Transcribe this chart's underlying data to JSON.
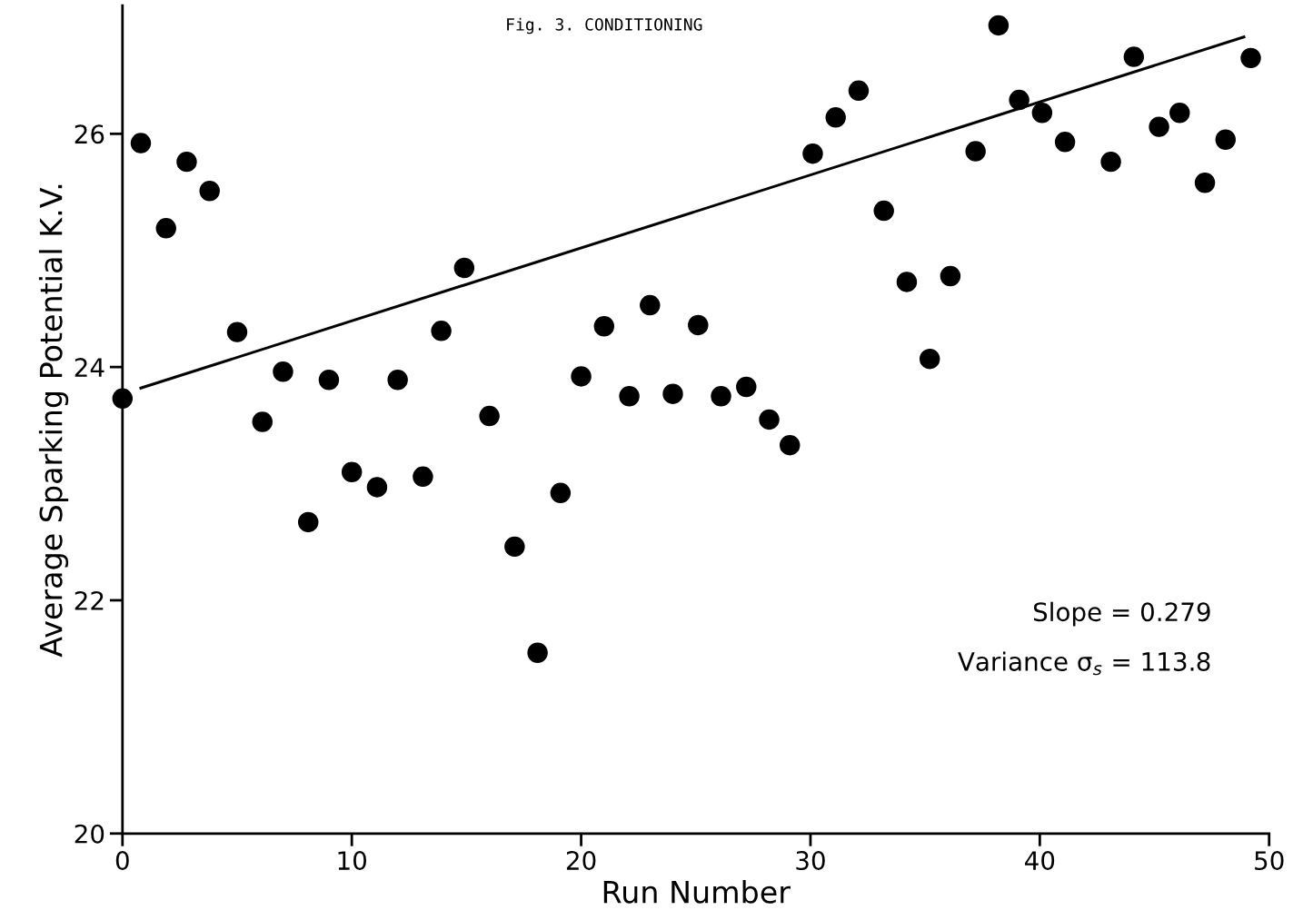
{
  "chart_data": {
    "type": "scatter",
    "title": "Fig. 3. CONDITIONING",
    "xlabel": "Run Number",
    "ylabel": "Average Sparking Potential K.V.",
    "xlim": [
      0,
      50
    ],
    "ylim": [
      20,
      27.1
    ],
    "xticks": [
      0,
      10,
      20,
      30,
      40,
      50
    ],
    "yticks": [
      20,
      22,
      24,
      26
    ],
    "grid": false,
    "marker": "circle",
    "series": [
      {
        "color": "#000000",
        "x": [
          0,
          0.8,
          1.9,
          2.8,
          3.8,
          5.0,
          6.1,
          7.0,
          8.1,
          9.0,
          10.0,
          11.1,
          12.0,
          13.1,
          13.9,
          14.9,
          16.0,
          17.1,
          18.1,
          19.1,
          20.0,
          21.0,
          22.1,
          23.0,
          24.0,
          25.1,
          26.1,
          27.2,
          28.2,
          29.1,
          30.1,
          31.1,
          32.1,
          33.2,
          34.2,
          35.2,
          36.1,
          37.2,
          38.2,
          39.1,
          40.1,
          41.1,
          43.1,
          44.1,
          45.2,
          46.1,
          47.2,
          48.1,
          49.2
        ],
        "values": [
          23.73,
          25.92,
          25.19,
          25.76,
          25.51,
          24.3,
          23.53,
          23.96,
          22.67,
          23.89,
          23.1,
          22.97,
          23.89,
          23.06,
          24.31,
          24.85,
          23.58,
          22.46,
          21.55,
          22.92,
          23.92,
          24.35,
          23.75,
          24.53,
          23.77,
          24.36,
          23.75,
          23.83,
          23.55,
          23.33,
          25.83,
          26.14,
          26.37,
          25.34,
          24.73,
          24.07,
          24.78,
          25.85,
          26.93,
          26.29,
          26.18,
          25.93,
          25.76,
          26.66,
          26.06,
          26.18,
          25.58,
          25.95,
          26.65
        ]
      },
      {
        "type": "line",
        "color": "#000000",
        "x": [
          0.8,
          48.9
        ],
        "values": [
          23.82,
          26.83
        ],
        "marker": "none",
        "line_style": "solid"
      }
    ],
    "annotations": [
      "Slope = 0.279",
      "Variance σ$_{s}$ = 113.8"
    ]
  }
}
